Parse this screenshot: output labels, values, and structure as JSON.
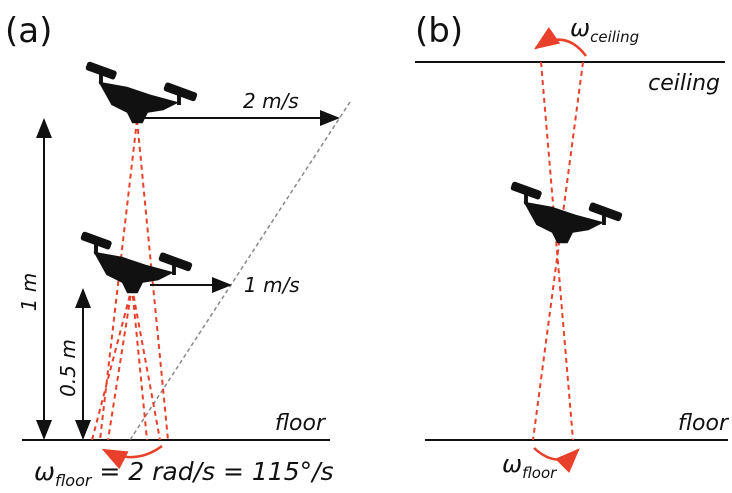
{
  "panel_a": {
    "label": "(a)",
    "fast_speed": "2 m/s",
    "slow_speed": "1 m/s",
    "height_high": "1 m",
    "height_low": "0.5 m",
    "surface": "floor",
    "omega": {
      "symbol": "ω",
      "subscript": "floor",
      "rest": " = 2 rad/s = 115°/s"
    }
  },
  "panel_b": {
    "label": "(b)",
    "top_surface": "ceiling",
    "bottom_surface": "floor",
    "omega_top": {
      "symbol": "ω",
      "subscript": "ceiling"
    },
    "omega_bottom": {
      "symbol": "ω",
      "subscript": "floor"
    }
  }
}
